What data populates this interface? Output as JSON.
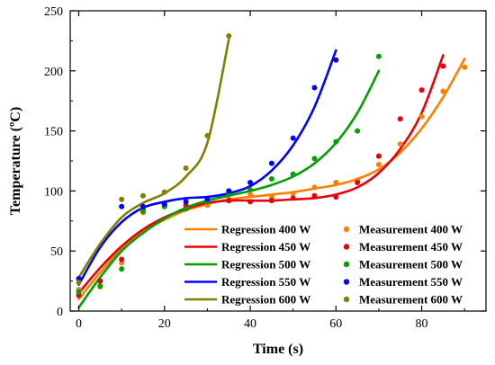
{
  "chart_data": {
    "type": "line",
    "title": "",
    "xlabel": "Time (s)",
    "ylabel": "Temperature (ºC)",
    "xlim": [
      -2,
      95
    ],
    "ylim": [
      0,
      250
    ],
    "x_ticks": [
      0,
      20,
      40,
      60,
      80
    ],
    "y_ticks": [
      0,
      50,
      100,
      150,
      200,
      250
    ],
    "grid": false,
    "legend_position": "bottom-right",
    "series": [
      {
        "name": "Regression 400 W",
        "color": "#ff8000",
        "points": [
          [
            0,
            10
          ],
          [
            5,
            32
          ],
          [
            10,
            52
          ],
          [
            15,
            66
          ],
          [
            20,
            76
          ],
          [
            25,
            84
          ],
          [
            30,
            89
          ],
          [
            35,
            93
          ],
          [
            40,
            95
          ],
          [
            45,
            97
          ],
          [
            50,
            99
          ],
          [
            55,
            102
          ],
          [
            60,
            105
          ],
          [
            65,
            110
          ],
          [
            70,
            118
          ],
          [
            75,
            132
          ],
          [
            80,
            152
          ],
          [
            85,
            178
          ],
          [
            90,
            210
          ]
        ]
      },
      {
        "name": "Regression 450 W",
        "color": "#e8000b",
        "points": [
          [
            0,
            15
          ],
          [
            5,
            36
          ],
          [
            10,
            54
          ],
          [
            15,
            68
          ],
          [
            20,
            78
          ],
          [
            25,
            85
          ],
          [
            30,
            90
          ],
          [
            35,
            92
          ],
          [
            40,
            92
          ],
          [
            45,
            92
          ],
          [
            50,
            93
          ],
          [
            55,
            94
          ],
          [
            60,
            97
          ],
          [
            65,
            103
          ],
          [
            70,
            115
          ],
          [
            75,
            135
          ],
          [
            80,
            165
          ],
          [
            85,
            213
          ]
        ]
      },
      {
        "name": "Regression 500 W",
        "color": "#00a000",
        "points": [
          [
            0,
            3
          ],
          [
            5,
            28
          ],
          [
            10,
            50
          ],
          [
            15,
            65
          ],
          [
            20,
            77
          ],
          [
            25,
            86
          ],
          [
            30,
            92
          ],
          [
            35,
            96
          ],
          [
            40,
            100
          ],
          [
            45,
            105
          ],
          [
            50,
            112
          ],
          [
            55,
            123
          ],
          [
            60,
            140
          ],
          [
            65,
            165
          ],
          [
            70,
            200
          ]
        ]
      },
      {
        "name": "Regression 550 W",
        "color": "#0000ff",
        "points": [
          [
            0,
            22
          ],
          [
            5,
            53
          ],
          [
            10,
            74
          ],
          [
            15,
            86
          ],
          [
            20,
            91
          ],
          [
            25,
            94
          ],
          [
            30,
            95
          ],
          [
            35,
            98
          ],
          [
            40,
            104
          ],
          [
            45,
            117
          ],
          [
            50,
            138
          ],
          [
            55,
            170
          ],
          [
            60,
            217
          ]
        ]
      },
      {
        "name": "Regression 600 W",
        "color": "#808000",
        "points": [
          [
            0,
            28
          ],
          [
            5,
            56
          ],
          [
            10,
            78
          ],
          [
            15,
            90
          ],
          [
            20,
            98
          ],
          [
            25,
            112
          ],
          [
            30,
            140
          ],
          [
            35,
            226
          ]
        ]
      }
    ],
    "measurements": [
      {
        "name": "Measurement 400 W",
        "color": "#ff8000",
        "points": [
          [
            0,
            18
          ],
          [
            5,
            20
          ],
          [
            10,
            40
          ],
          [
            15,
            82
          ],
          [
            20,
            87
          ],
          [
            25,
            86
          ],
          [
            30,
            88
          ],
          [
            35,
            93
          ],
          [
            40,
            97
          ],
          [
            45,
            95
          ],
          [
            50,
            98
          ],
          [
            55,
            103
          ],
          [
            60,
            107
          ],
          [
            65,
            109
          ],
          [
            70,
            122
          ],
          [
            75,
            139
          ],
          [
            80,
            162
          ],
          [
            85,
            183
          ],
          [
            90,
            203
          ]
        ]
      },
      {
        "name": "Measurement 450 W",
        "color": "#e8000b",
        "points": [
          [
            0,
            13
          ],
          [
            5,
            25
          ],
          [
            10,
            43
          ],
          [
            15,
            85
          ],
          [
            20,
            89
          ],
          [
            25,
            88
          ],
          [
            30,
            91
          ],
          [
            35,
            92
          ],
          [
            40,
            91
          ],
          [
            45,
            92
          ],
          [
            50,
            94
          ],
          [
            55,
            96
          ],
          [
            60,
            95
          ],
          [
            65,
            107
          ],
          [
            70,
            129
          ],
          [
            75,
            160
          ],
          [
            80,
            184
          ],
          [
            85,
            204
          ]
        ]
      },
      {
        "name": "Measurement 500 W",
        "color": "#00a000",
        "points": [
          [
            0,
            16
          ],
          [
            5,
            21
          ],
          [
            10,
            35
          ],
          [
            15,
            83
          ],
          [
            20,
            87
          ],
          [
            25,
            85
          ],
          [
            30,
            91
          ],
          [
            35,
            97
          ],
          [
            40,
            101
          ],
          [
            45,
            110
          ],
          [
            50,
            114
          ],
          [
            55,
            127
          ],
          [
            60,
            141
          ],
          [
            65,
            150
          ],
          [
            70,
            212
          ]
        ]
      },
      {
        "name": "Measurement 550 W",
        "color": "#0000ff",
        "points": [
          [
            0,
            27
          ],
          [
            10,
            87
          ],
          [
            15,
            87
          ],
          [
            20,
            89
          ],
          [
            25,
            91
          ],
          [
            30,
            93
          ],
          [
            35,
            100
          ],
          [
            40,
            107
          ],
          [
            45,
            123
          ],
          [
            50,
            144
          ],
          [
            55,
            186
          ],
          [
            60,
            209
          ]
        ]
      },
      {
        "name": "Measurement 600 W",
        "color": "#808000",
        "points": [
          [
            0,
            24
          ],
          [
            10,
            93
          ],
          [
            15,
            96
          ],
          [
            20,
            99
          ],
          [
            25,
            119
          ],
          [
            30,
            146
          ],
          [
            35,
            229
          ]
        ]
      }
    ]
  }
}
